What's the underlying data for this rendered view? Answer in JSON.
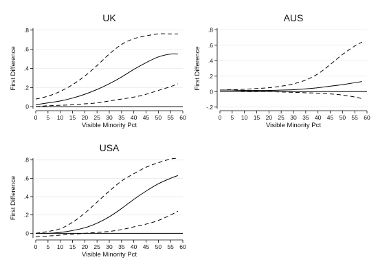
{
  "chart_data": [
    {
      "type": "line",
      "title": "UK",
      "xlabel": "Visible Minority Pct",
      "ylabel": "First Difference",
      "xlim": [
        0,
        60
      ],
      "ylim": [
        -0.02,
        0.82
      ],
      "xticks": [
        0,
        5,
        10,
        15,
        20,
        25,
        30,
        35,
        40,
        45,
        50,
        55,
        60
      ],
      "xtick_labels": [
        "0",
        "5",
        "10",
        "15",
        "20",
        "25",
        "30",
        "35",
        "40",
        "45",
        "50",
        "55",
        "60"
      ],
      "yticks": [
        0,
        0.2,
        0.4,
        0.6,
        0.8
      ],
      "ytick_labels": [
        "0",
        ".2",
        ".4",
        ".6",
        ".8"
      ],
      "reference_line": 0,
      "x": [
        0,
        5,
        10,
        15,
        20,
        25,
        30,
        35,
        40,
        45,
        50,
        55,
        58
      ],
      "series": [
        {
          "values": [
            0.08,
            0.11,
            0.16,
            0.23,
            0.32,
            0.43,
            0.55,
            0.65,
            0.71,
            0.74,
            0.76,
            0.76,
            0.76
          ],
          "style": "dashed"
        },
        {
          "values": [
            0.02,
            0.04,
            0.06,
            0.09,
            0.13,
            0.18,
            0.24,
            0.31,
            0.39,
            0.46,
            0.52,
            0.55,
            0.55
          ],
          "style": "solid"
        },
        {
          "values": [
            0.0,
            0.01,
            0.015,
            0.02,
            0.03,
            0.04,
            0.06,
            0.08,
            0.1,
            0.13,
            0.17,
            0.21,
            0.24
          ],
          "style": "dashed"
        }
      ]
    },
    {
      "type": "line",
      "title": "AUS",
      "xlabel": "Visible Minority Pct",
      "ylabel": "First Difference",
      "xlim": [
        0,
        60
      ],
      "ylim": [
        -0.22,
        0.82
      ],
      "xticks": [
        0,
        5,
        10,
        15,
        20,
        25,
        30,
        35,
        40,
        45,
        50,
        55,
        60
      ],
      "xtick_labels": [
        "0",
        "5",
        "10",
        "15",
        "20",
        "25",
        "30",
        "35",
        "40",
        "45",
        "50",
        "55",
        "60"
      ],
      "yticks": [
        -0.2,
        0,
        0.2,
        0.4,
        0.6,
        0.8
      ],
      "ytick_labels": [
        "-.2",
        "0",
        ".2",
        ".4",
        ".6",
        ".8"
      ],
      "reference_line": 0,
      "x": [
        0,
        5,
        10,
        15,
        20,
        25,
        30,
        35,
        40,
        45,
        50,
        55,
        58
      ],
      "series": [
        {
          "values": [
            0.02,
            0.025,
            0.03,
            0.04,
            0.05,
            0.07,
            0.1,
            0.15,
            0.23,
            0.35,
            0.48,
            0.59,
            0.64
          ],
          "style": "dashed"
        },
        {
          "values": [
            0.02,
            0.02,
            0.015,
            0.015,
            0.015,
            0.02,
            0.025,
            0.035,
            0.05,
            0.07,
            0.09,
            0.115,
            0.13
          ],
          "style": "solid"
        },
        {
          "values": [
            0.02,
            0.02,
            0.01,
            0.005,
            0.0,
            -0.005,
            -0.01,
            -0.015,
            -0.02,
            -0.03,
            -0.045,
            -0.07,
            -0.09
          ],
          "style": "dashed"
        }
      ]
    },
    {
      "type": "line",
      "title": "USA",
      "xlabel": "Visible Minority Pct",
      "ylabel": "First Difference",
      "xlim": [
        0,
        60
      ],
      "ylim": [
        -0.05,
        0.82
      ],
      "xticks": [
        0,
        5,
        10,
        15,
        20,
        25,
        30,
        35,
        40,
        45,
        50,
        55,
        60
      ],
      "xtick_labels": [
        "0",
        "5",
        "10",
        "15",
        "20",
        "25",
        "30",
        "35",
        "40",
        "45",
        "50",
        "55",
        "60"
      ],
      "yticks": [
        0,
        0.2,
        0.4,
        0.6,
        0.8
      ],
      "ytick_labels": [
        "0",
        ".2",
        ".4",
        ".6",
        ".8"
      ],
      "reference_line": 0,
      "x": [
        0,
        5,
        10,
        15,
        20,
        25,
        30,
        35,
        40,
        45,
        50,
        55,
        58
      ],
      "series": [
        {
          "values": [
            0.0,
            0.02,
            0.05,
            0.12,
            0.22,
            0.34,
            0.46,
            0.57,
            0.65,
            0.72,
            0.77,
            0.81,
            0.82
          ],
          "style": "dashed"
        },
        {
          "values": [
            0.0,
            0.0,
            0.01,
            0.03,
            0.06,
            0.11,
            0.18,
            0.27,
            0.37,
            0.46,
            0.54,
            0.6,
            0.63
          ],
          "style": "solid"
        },
        {
          "values": [
            -0.04,
            -0.03,
            -0.02,
            -0.01,
            0.0,
            0.01,
            0.02,
            0.04,
            0.07,
            0.1,
            0.14,
            0.2,
            0.24
          ],
          "style": "dashed"
        }
      ]
    }
  ]
}
